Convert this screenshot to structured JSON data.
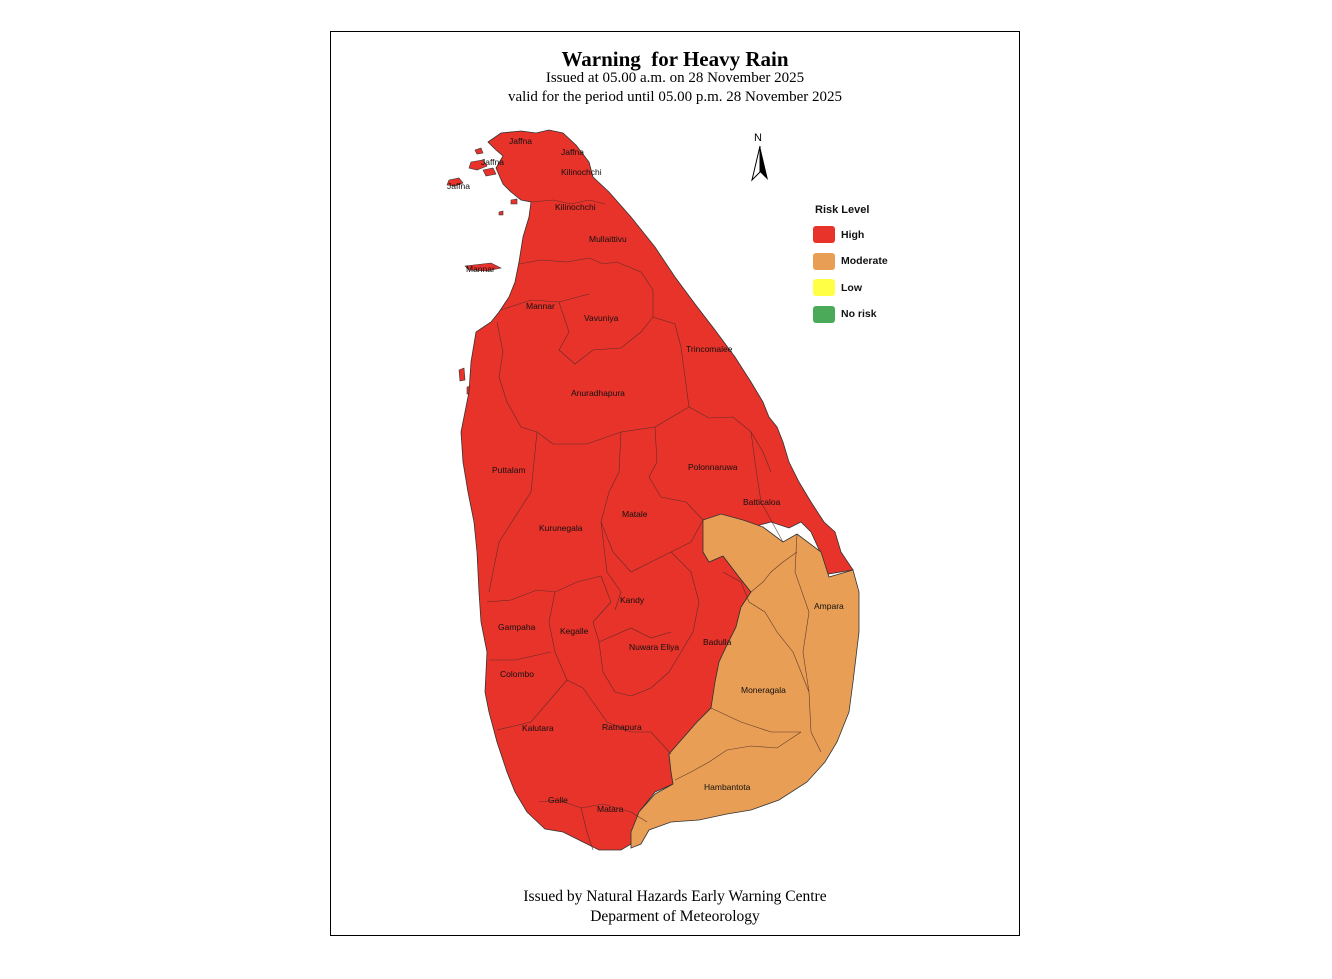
{
  "header": {
    "title": "Warning  for Heavy Rain",
    "issued": "Issued at 05.00 a.m. on 28 November 2025",
    "validity": "valid for the period until 05.00 p.m. 28 November 2025"
  },
  "footer": {
    "line1": "Issued by Natural Hazards Early Warning Centre",
    "line2": "Deparment of Meteorology"
  },
  "north_arrow": {
    "label": "N"
  },
  "legend": {
    "title": "Risk Level",
    "items": [
      {
        "label": "High",
        "color": "#e8332a"
      },
      {
        "label": "Moderate",
        "color": "#e99e55"
      },
      {
        "label": "Low",
        "color": "#ffff45"
      },
      {
        "label": "No risk",
        "color": "#4aaa5a"
      }
    ]
  },
  "districts": {
    "jaffna_1": "Jaffna",
    "jaffna_2": "Jaffna",
    "jaffna_3": "Jaffna",
    "jaffna_4": "Jaffna",
    "kilinochchi_1": "Kilinochchi",
    "kilinochchi_2": "Kilinochchi",
    "mannar_1": "Mannar",
    "mannar_2": "Mannar",
    "mullaittivu": "Mullaittivu",
    "vavuniya": "Vavuniya",
    "trincomalee": "Trincomalee",
    "anuradhapura": "Anuradhapura",
    "polonnaruwa": "Polonnaruwa",
    "puttalam": "Puttalam",
    "batticaloa": "Batticaloa",
    "matale": "Matale",
    "kurunegala": "Kurunegala",
    "ampara": "Ampara",
    "kandy": "Kandy",
    "gampaha": "Gampaha",
    "kegalle": "Kegalle",
    "badulla": "Badulla",
    "nuwara_eliya": "Nuwara Eliya",
    "colombo": "Colombo",
    "moneragala": "Moneragala",
    "kalutara": "Kalutara",
    "ratnapura": "Ratnapura",
    "hambantota": "Hambantota",
    "galle": "Galle",
    "matara": "Matara"
  }
}
